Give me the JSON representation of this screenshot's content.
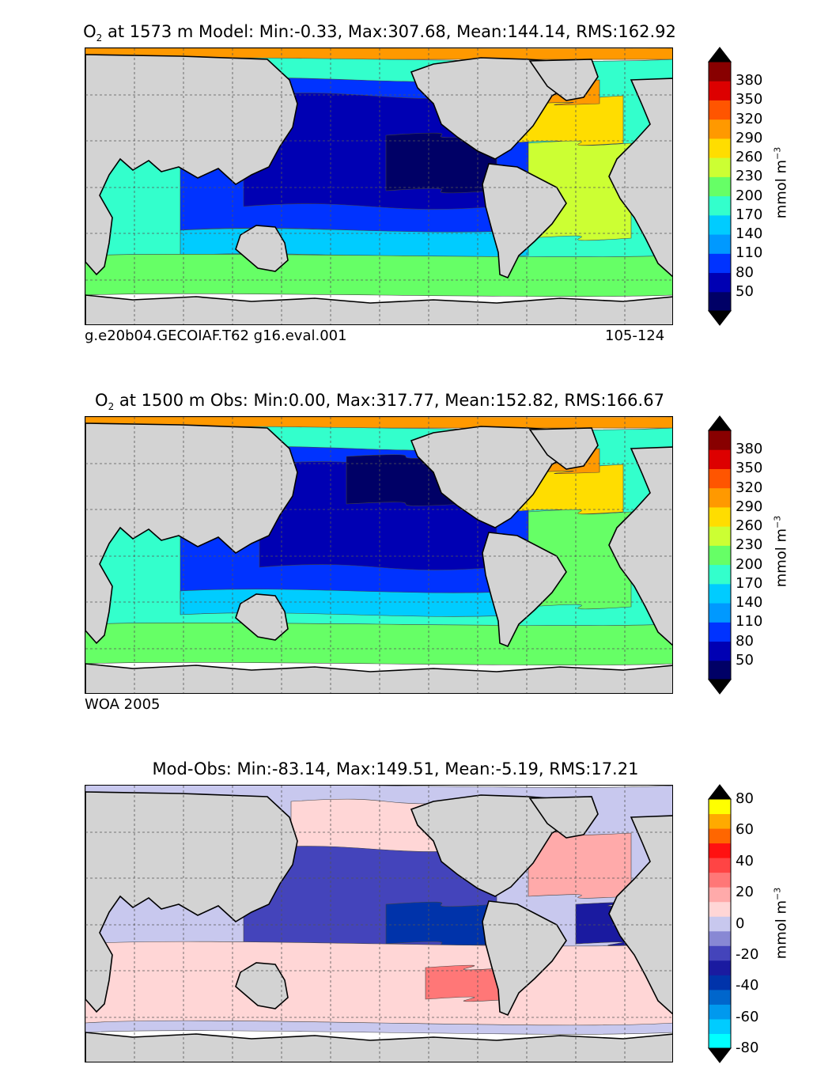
{
  "colors": {
    "land": "#d3d3d3",
    "missing": "#ffffff",
    "grid": "#555555"
  },
  "panel1": {
    "species": "O",
    "sub": "2",
    "title_rest": " at 1573 m Model: Min:-0.33, Max:307.68, Mean:144.14, RMS:162.92",
    "left_note": "g.e20b04.GECOIAF.T62 g16.eval.001",
    "right_note": "105-124",
    "unit": "mmol m",
    "unit_sup": "−3"
  },
  "panel2": {
    "species": "O",
    "sub": "2",
    "title_rest": " at 1500 m Obs: Min:0.00, Max:317.77, Mean:152.82, RMS:166.67",
    "left_note": "WOA 2005",
    "unit": "mmol m",
    "unit_sup": "−3"
  },
  "panel3": {
    "title": "Mod-Obs: Min:-83.14, Max:149.51, Mean:-5.19, RMS:17.21",
    "unit": "mmol m",
    "unit_sup": "−3"
  },
  "chart_data": [
    {
      "type": "heatmap",
      "title": "O2 at 1573 m Model: Min:-0.33, Max:307.68, Mean:144.14, RMS:162.92",
      "field": "model",
      "stats": {
        "min": -0.33,
        "max": 307.68,
        "mean": 144.14,
        "rms": 162.92
      },
      "depth_m": 1573,
      "colorbar": {
        "levels": [
          20,
          50,
          80,
          110,
          140,
          170,
          200,
          230,
          260,
          290,
          320,
          350,
          380,
          410
        ],
        "tick_labels": [
          "50",
          "80",
          "110",
          "140",
          "170",
          "200",
          "230",
          "260",
          "290",
          "320",
          "350",
          "380"
        ],
        "colors": [
          "#000066",
          "#0000b3",
          "#0033ff",
          "#0099ff",
          "#00ccff",
          "#33ffcc",
          "#66ff66",
          "#ccff33",
          "#ffdd00",
          "#ff9900",
          "#ff5500",
          "#dd0000",
          "#880000"
        ],
        "extend": "both",
        "under_color": "#000000",
        "over_color": "#000000",
        "label": "mmol m−3"
      }
    },
    {
      "type": "heatmap",
      "title": "O2 at 1500 m Obs: Min:0.00, Max:317.77, Mean:152.82, RMS:166.67",
      "field": "observations",
      "source": "WOA 2005",
      "stats": {
        "min": 0.0,
        "max": 317.77,
        "mean": 152.82,
        "rms": 166.67
      },
      "depth_m": 1500,
      "colorbar": {
        "levels": [
          20,
          50,
          80,
          110,
          140,
          170,
          200,
          230,
          260,
          290,
          320,
          350,
          380,
          410
        ],
        "tick_labels": [
          "50",
          "80",
          "110",
          "140",
          "170",
          "200",
          "230",
          "260",
          "290",
          "320",
          "350",
          "380"
        ],
        "colors": [
          "#000066",
          "#0000b3",
          "#0033ff",
          "#0099ff",
          "#00ccff",
          "#33ffcc",
          "#66ff66",
          "#ccff33",
          "#ffdd00",
          "#ff9900",
          "#ff5500",
          "#dd0000",
          "#880000"
        ],
        "extend": "both",
        "under_color": "#000000",
        "over_color": "#000000",
        "label": "mmol m−3"
      }
    },
    {
      "type": "heatmap",
      "title": "Mod-Obs: Min:-83.14, Max:149.51, Mean:-5.19, RMS:17.21",
      "field": "difference",
      "stats": {
        "min": -83.14,
        "max": 149.51,
        "mean": -5.19,
        "rms": 17.21
      },
      "colorbar": {
        "levels": [
          -80,
          -70,
          -60,
          -50,
          -40,
          -30,
          -20,
          -10,
          0,
          10,
          20,
          30,
          40,
          50,
          60,
          70,
          80
        ],
        "tick_labels": [
          "-80",
          "-60",
          "-40",
          "-20",
          "0",
          "20",
          "40",
          "60",
          "80"
        ],
        "colors": [
          "#00ffff",
          "#00ccff",
          "#0099ee",
          "#0066cc",
          "#0033aa",
          "#1a1aa0",
          "#4444bb",
          "#8888d4",
          "#c8c8ee",
          "#ffd6d6",
          "#ffaaaa",
          "#ff7777",
          "#ff4444",
          "#ff1111",
          "#ff6600",
          "#ffaa00",
          "#ffff00"
        ],
        "extend": "both",
        "under_color": "#000000",
        "over_color": "#000000",
        "label": "mmol m−3"
      }
    }
  ]
}
